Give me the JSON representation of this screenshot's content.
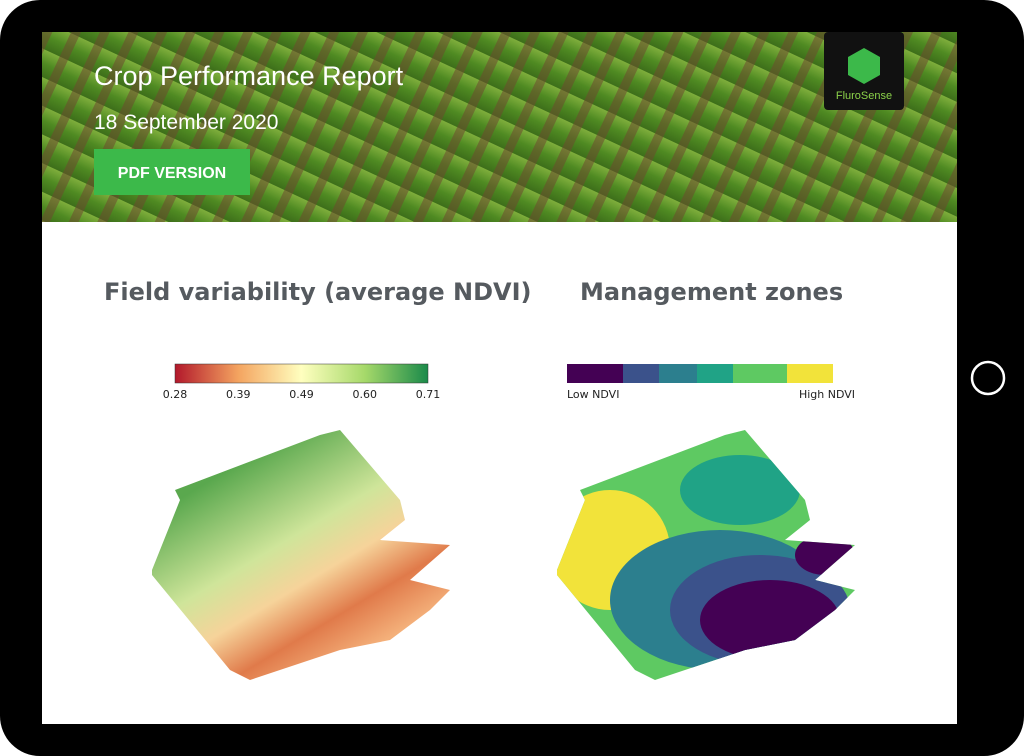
{
  "header": {
    "title": "Crop Performance Report",
    "date": "18 September 2020",
    "button": "PDF VERSION",
    "logo": "FluroSense"
  },
  "panels": [
    {
      "title": "Field variability (average NDVI)",
      "colorbar": {
        "ticks": [
          "0.28",
          "0.39",
          "0.49",
          "0.60",
          "0.71"
        ]
      }
    },
    {
      "title": "Management zones",
      "colorbar": {
        "ticks": [
          "Low NDVI",
          "High NDVI"
        ]
      }
    }
  ]
}
